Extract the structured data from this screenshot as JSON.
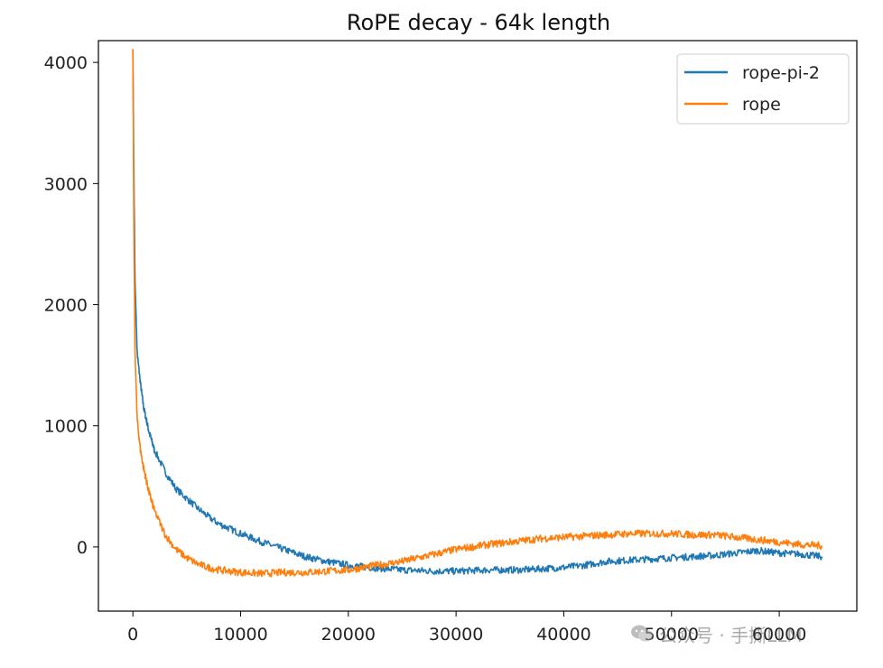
{
  "chart_data": {
    "type": "line",
    "title": "RoPE decay - 64k length",
    "xlabel": "",
    "ylabel": "",
    "xlim": [
      -3200,
      67200
    ],
    "ylim": [
      -530,
      4180
    ],
    "x_ticks": [
      0,
      10000,
      20000,
      30000,
      40000,
      50000,
      60000
    ],
    "x_tick_labels": [
      "0",
      "10000",
      "20000",
      "30000",
      "40000",
      "50000",
      "60000"
    ],
    "y_ticks": [
      0,
      1000,
      2000,
      3000,
      4000
    ],
    "y_tick_labels": [
      "0",
      "1000",
      "2000",
      "3000",
      "4000"
    ],
    "grid": false,
    "legend_position": "top-right",
    "series": [
      {
        "name": "rope-pi-2",
        "color": "#1f77b4",
        "noise": 28,
        "x": [
          0,
          100,
          200,
          400,
          700,
          1000,
          1500,
          2000,
          3000,
          4000,
          5000,
          6000,
          7000,
          8000,
          10000,
          12000,
          14000,
          16000,
          18000,
          20000,
          22000,
          25000,
          28000,
          30000,
          33000,
          36000,
          38000,
          40000,
          42000,
          44000,
          46000,
          48000,
          50000,
          52000,
          54000,
          56000,
          58000,
          60000,
          62000,
          64000
        ],
        "y": [
          4110,
          3000,
          2200,
          1600,
          1350,
          1150,
          950,
          800,
          620,
          480,
          400,
          320,
          250,
          190,
          110,
          40,
          -20,
          -80,
          -120,
          -150,
          -170,
          -190,
          -200,
          -200,
          -190,
          -190,
          -180,
          -170,
          -150,
          -120,
          -110,
          -100,
          -90,
          -80,
          -70,
          -50,
          -30,
          -50,
          -60,
          -80
        ]
      },
      {
        "name": "rope",
        "color": "#ff7f0e",
        "noise": 30,
        "x": [
          0,
          100,
          200,
          400,
          700,
          1000,
          1500,
          2000,
          3000,
          4000,
          5000,
          6000,
          7000,
          8000,
          10000,
          12000,
          14000,
          16000,
          18000,
          20000,
          22000,
          25000,
          28000,
          30000,
          33000,
          36000,
          38000,
          40000,
          42000,
          44000,
          46000,
          48000,
          50000,
          52000,
          54000,
          56000,
          58000,
          60000,
          62000,
          64000
        ],
        "y": [
          4110,
          2500,
          1600,
          1050,
          800,
          650,
          450,
          300,
          100,
          -20,
          -90,
          -140,
          -170,
          -190,
          -210,
          -220,
          -210,
          -210,
          -200,
          -190,
          -160,
          -120,
          -60,
          -20,
          20,
          50,
          70,
          80,
          90,
          100,
          110,
          110,
          110,
          100,
          100,
          80,
          60,
          40,
          20,
          10
        ]
      }
    ]
  },
  "watermark": {
    "text": "公众号 · 手撕LLM",
    "icon": "wechat-icon"
  }
}
